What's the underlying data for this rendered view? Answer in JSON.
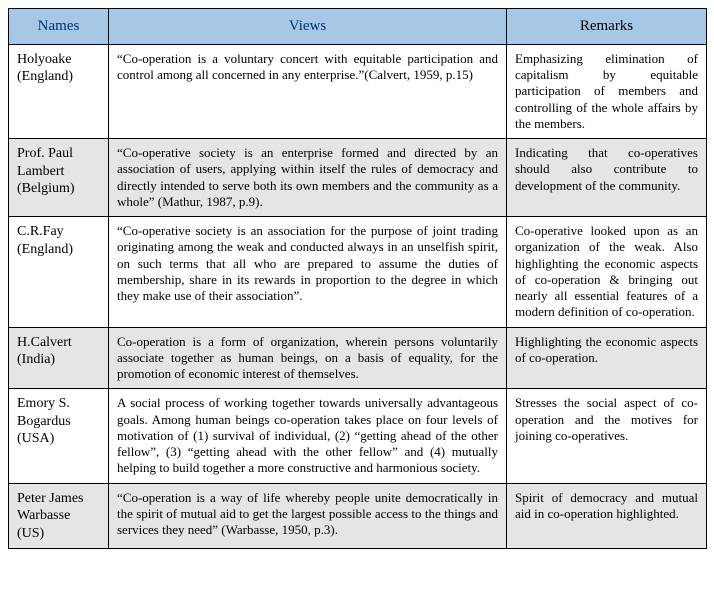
{
  "table": {
    "header": {
      "names": "Names",
      "views": "Views",
      "remarks": "Remarks"
    },
    "rows": [
      {
        "name": "Holyoake (England)",
        "view": "“Co-operation is a voluntary concert with equitable participation and control among all concerned in any enterprise.”(Calvert, 1959, p.15)",
        "remark": "Emphasizing elimination of capitalism by equitable participation of members and controlling of the whole affairs by the members."
      },
      {
        "name": "Prof. Paul Lambert (Belgium)",
        "view": "“Co-operative society is an enterprise formed and directed by an association of users, applying within itself the rules of democracy and directly intended to serve both its own members and the community as a whole” (Mathur, 1987, p.9).",
        "remark": "Indicating that co-operatives should also contribute to development of the community."
      },
      {
        "name": "C.R.Fay (England)",
        "view": "“Co-operative society is an association for the purpose of joint trading originating among the weak and conducted always in an unselfish spirit, on such terms that all who are prepared to assume the duties of membership, share in its rewards in proportion to the degree in which they make use of their association”.",
        "remark": "Co-operative looked upon as an organization of the weak. Also highlighting the economic aspects of co-operation & bringing out nearly all essential features of a modern definition of co-operation."
      },
      {
        "name": "H.Calvert (India)",
        "view": "Co-operation is a form of organization, wherein persons voluntarily associate together as human beings, on a basis of equality, for the promotion of economic interest of themselves.",
        "remark": "Highlighting the economic aspects of co-operation."
      },
      {
        "name": "Emory S. Bogardus (USA)",
        "view": "A social process of working together towards universally advantageous goals. Among human beings co-operation takes place on four levels of motivation of (1) survival of individual, (2) “getting ahead of the other fellow”, (3) “getting ahead with the other fellow” and (4) mutually helping to build together a more constructive and harmonious society.",
        "remark": "Stresses the social aspect of co-operation and the motives for joining co-operatives."
      },
      {
        "name": "Peter James Warbasse (US)",
        "view": "“Co-operation is a way of life whereby people unite democratically in the spirit of mutual aid to get the largest possible access to the things and services they need” (Warbasse, 1950, p.3).",
        "remark": "Spirit of democracy and mutual aid in co-operation highlighted."
      }
    ]
  }
}
